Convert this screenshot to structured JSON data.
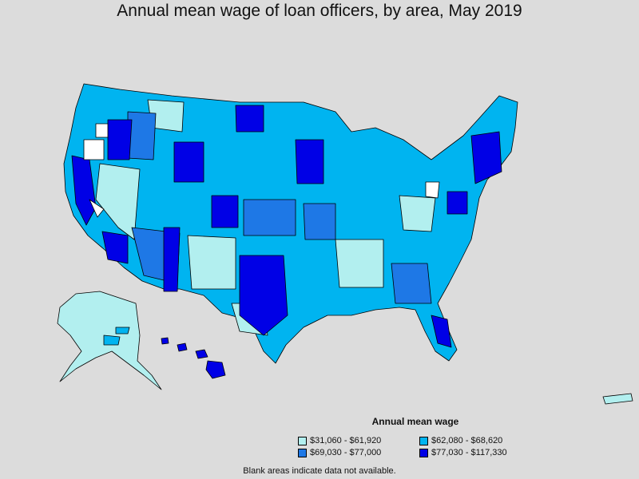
{
  "title": "Annual mean wage of loan officers, by area, May 2019",
  "legend": {
    "title": "Annual mean wage",
    "items": [
      {
        "label": "$31,060 - $61,920",
        "color": "#b2efef"
      },
      {
        "label": "$62,080 - $68,620",
        "color": "#00b4f0"
      },
      {
        "label": "$69,030 - $77,000",
        "color": "#1e78e6"
      },
      {
        "label": "$77,030 - $117,330",
        "color": "#0000e6"
      }
    ]
  },
  "note": "Blank areas indicate data not available."
}
